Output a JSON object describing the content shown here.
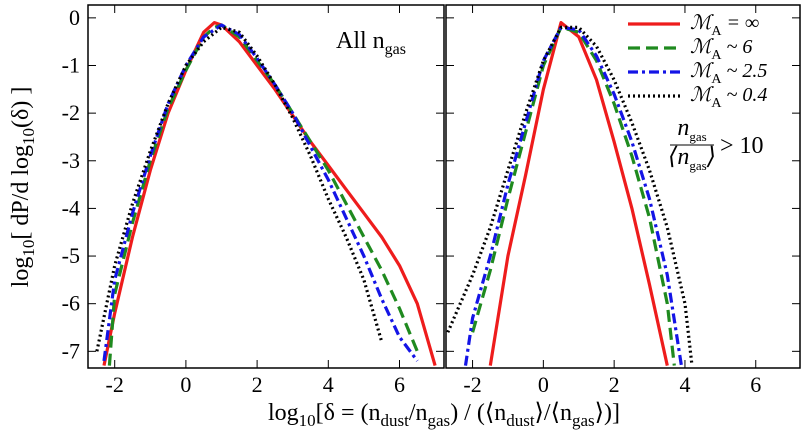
{
  "chart_data": [
    {
      "type": "line",
      "xlabel": [
        "log",
        "10",
        "[δ  =  (n",
        "dust",
        "/n",
        "gas",
        ") / (⟨n",
        "dust",
        "⟩/⟨n",
        "gas",
        "⟩)]"
      ],
      "ylabel": [
        "log",
        "10",
        "[ dP/d log",
        "10",
        "(δ) ]"
      ],
      "annotation": [
        "All n",
        "gas"
      ],
      "xlim": [
        -2.75,
        7.25
      ],
      "ylim": [
        -7.35,
        0.27
      ],
      "xticks": [
        -2,
        0,
        2,
        4,
        6
      ],
      "yticks": [
        0,
        -1,
        -2,
        -3,
        -4,
        -5,
        -6,
        -7
      ],
      "ytick_labels": true,
      "series": [
        {
          "color": "#ee1c1c",
          "dash": "solid",
          "x": [
            -2.3,
            -2,
            -1.5,
            -1,
            -0.5,
            0,
            0.5,
            0.8,
            1,
            1.5,
            2,
            2.5,
            3,
            3.5,
            4,
            4.5,
            5,
            5.5,
            6,
            6.5,
            7
          ],
          "values": [
            -7.3,
            -6.2,
            -4.6,
            -3.2,
            -2.0,
            -1.1,
            -0.3,
            -0.1,
            -0.15,
            -0.5,
            -1.0,
            -1.5,
            -2.05,
            -2.6,
            -3.1,
            -3.6,
            -4.1,
            -4.6,
            -5.2,
            -6.0,
            -7.3
          ]
        },
        {
          "color": "#1f8a1f",
          "dash": "dashed",
          "x": [
            -2.15,
            -2,
            -1.5,
            -1,
            -0.5,
            0,
            0.5,
            0.8,
            1,
            1.5,
            2,
            2.5,
            3,
            3.5,
            4,
            4.5,
            5,
            5.5,
            6,
            6.5
          ],
          "values": [
            -7.3,
            -5.8,
            -4.3,
            -3.0,
            -1.9,
            -1.1,
            -0.4,
            -0.2,
            -0.15,
            -0.4,
            -0.9,
            -1.4,
            -2.0,
            -2.6,
            -3.2,
            -3.9,
            -4.6,
            -5.3,
            -6.1,
            -7.0
          ]
        },
        {
          "color": "#1414e6",
          "dash": "dashdot",
          "x": [
            -2.3,
            -2,
            -1.5,
            -1,
            -0.5,
            0,
            0.5,
            1,
            1.5,
            2,
            2.5,
            3,
            3.5,
            4,
            4.5,
            5,
            5.5,
            6,
            6.5
          ],
          "values": [
            -7.2,
            -5.5,
            -4.1,
            -2.9,
            -1.8,
            -1.0,
            -0.4,
            -0.15,
            -0.35,
            -0.85,
            -1.4,
            -2.0,
            -2.7,
            -3.4,
            -4.2,
            -5.0,
            -5.9,
            -6.7,
            -7.2
          ]
        },
        {
          "color": "#000000",
          "dash": "dotted",
          "x": [
            -2.5,
            -2,
            -1.5,
            -1,
            -0.5,
            0,
            0.5,
            1,
            1.5,
            2,
            2.5,
            3,
            3.5,
            4,
            4.5,
            5,
            5.5
          ],
          "values": [
            -7.0,
            -5.2,
            -3.9,
            -2.8,
            -1.8,
            -1.0,
            -0.5,
            -0.2,
            -0.3,
            -0.8,
            -1.4,
            -2.1,
            -2.9,
            -3.8,
            -4.6,
            -5.5,
            -6.8
          ]
        }
      ]
    },
    {
      "type": "line",
      "annotation": {
        "numerator": [
          "n",
          "gas"
        ],
        "denominator": [
          "⟨n",
          "gas",
          "⟩"
        ],
        "relation": "> 10"
      },
      "xlim": [
        -2.75,
        7.25
      ],
      "ylim": [
        -7.35,
        0.27
      ],
      "xticks": [
        -2,
        0,
        2,
        4,
        6
      ],
      "yticks": [
        0,
        -1,
        -2,
        -3,
        -4,
        -5,
        -6,
        -7
      ],
      "ytick_labels": false,
      "series": [
        {
          "name": [
            "ℳ",
            "A",
            " = ∞"
          ],
          "color": "#ee1c1c",
          "dash": "solid",
          "x": [
            -1.5,
            -1,
            -0.5,
            0,
            0.5,
            1,
            1.5,
            2,
            2.5,
            3,
            3.5
          ],
          "values": [
            -7.3,
            -5.0,
            -3.3,
            -1.5,
            -0.1,
            -0.4,
            -1.3,
            -2.6,
            -4.0,
            -5.6,
            -7.3
          ]
        },
        {
          "name": [
            "ℳ",
            "A",
            " ~ 6"
          ],
          "color": "#1f8a1f",
          "dash": "dashed",
          "x": [
            -2,
            -1.5,
            -1,
            -0.5,
            0,
            0.5,
            1,
            1.5,
            2,
            2.5,
            3,
            3.5,
            3.7
          ],
          "values": [
            -6.6,
            -5.3,
            -3.8,
            -2.4,
            -1.0,
            -0.2,
            -0.3,
            -0.9,
            -1.8,
            -2.9,
            -4.2,
            -6.0,
            -7.3
          ]
        },
        {
          "name": [
            "ℳ",
            "A",
            " ~ 2.5"
          ],
          "color": "#1414e6",
          "dash": "dashdot",
          "x": [
            -2.2,
            -2,
            -1.5,
            -1,
            -0.5,
            0,
            0.5,
            1,
            1.5,
            2,
            2.5,
            3,
            3.5,
            3.9
          ],
          "values": [
            -7.3,
            -6.3,
            -5.0,
            -3.5,
            -2.2,
            -0.9,
            -0.2,
            -0.25,
            -0.8,
            -1.6,
            -2.6,
            -3.8,
            -5.4,
            -7.3
          ]
        },
        {
          "name": [
            "ℳ",
            "A",
            " ~ 0.4"
          ],
          "color": "#000000",
          "dash": "dotted",
          "x": [
            -2.7,
            -2,
            -1.5,
            -1,
            -0.5,
            0,
            0.5,
            1,
            1.5,
            2,
            2.5,
            3,
            3.5,
            4,
            4.2
          ],
          "values": [
            -6.6,
            -5.4,
            -4.4,
            -3.2,
            -2.0,
            -0.9,
            -0.2,
            -0.2,
            -0.6,
            -1.3,
            -2.2,
            -3.2,
            -4.4,
            -6.0,
            -7.3
          ]
        }
      ]
    }
  ]
}
